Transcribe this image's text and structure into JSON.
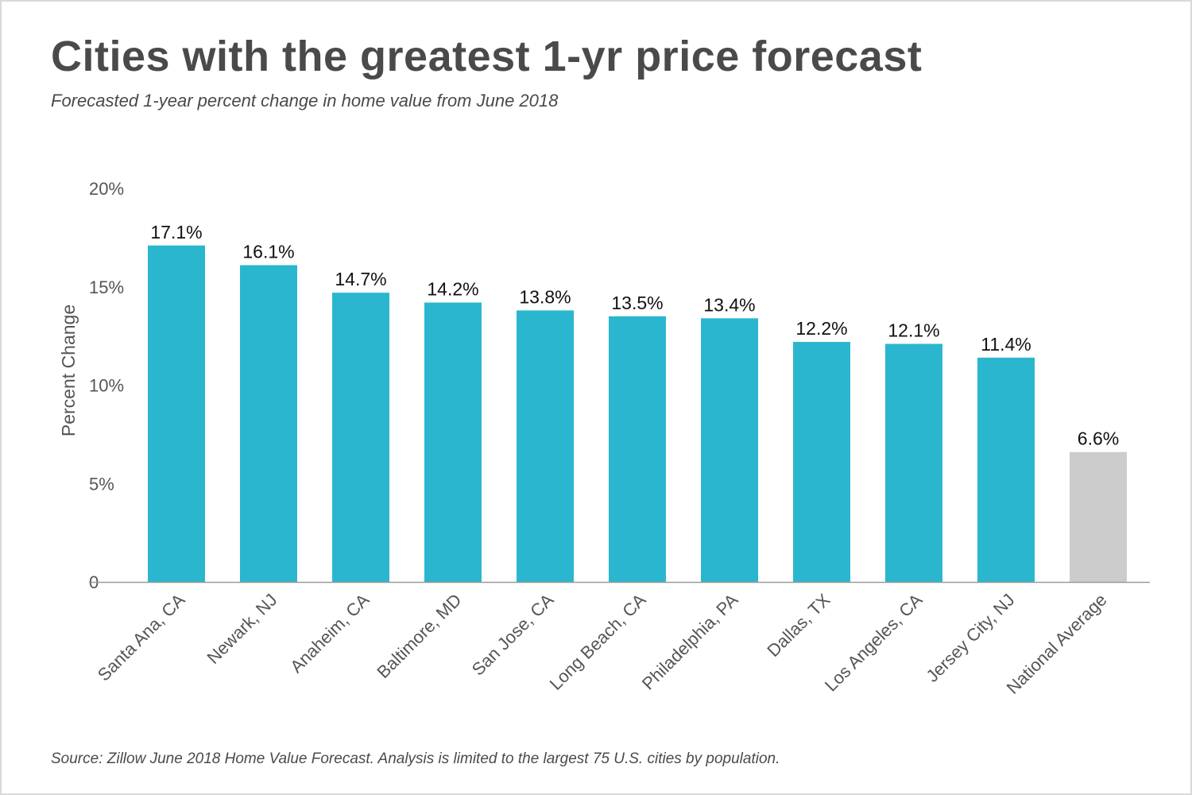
{
  "chart_data": {
    "type": "bar",
    "title": "Cities with the greatest 1-yr price forecast",
    "subtitle": "Forecasted 1-year percent change in home value from June 2018",
    "source": "Source: Zillow June 2018 Home Value Forecast. Analysis is limited to the largest 75 U.S. cities by population.",
    "ylabel": "Percent Change",
    "xlabel": "",
    "ylim": [
      0,
      20
    ],
    "yticks": [
      {
        "value": 0,
        "label": "0"
      },
      {
        "value": 5,
        "label": "5%"
      },
      {
        "value": 10,
        "label": "10%"
      },
      {
        "value": 15,
        "label": "15%"
      },
      {
        "value": 20,
        "label": "20%"
      }
    ],
    "grid": false,
    "categories": [
      "Santa Ana, CA",
      "Newark, NJ",
      "Anaheim, CA",
      "Baltimore, MD",
      "San Jose, CA",
      "Long Beach, CA",
      "Philadelphia, PA",
      "Dallas, TX",
      "Los Angeles, CA",
      "Jersey City, NJ",
      "National Average"
    ],
    "values": [
      17.1,
      16.1,
      14.7,
      14.2,
      13.8,
      13.5,
      13.4,
      12.2,
      12.1,
      11.4,
      6.6
    ],
    "data_labels": [
      "17.1%",
      "16.1%",
      "14.7%",
      "14.2%",
      "13.8%",
      "13.5%",
      "13.4%",
      "12.2%",
      "12.1%",
      "11.4%",
      "6.6%"
    ],
    "bar_colors": [
      "#2bb6cf",
      "#2bb6cf",
      "#2bb6cf",
      "#2bb6cf",
      "#2bb6cf",
      "#2bb6cf",
      "#2bb6cf",
      "#2bb6cf",
      "#2bb6cf",
      "#2bb6cf",
      "#cccccc"
    ],
    "axis_color": "#9a9a9a"
  }
}
